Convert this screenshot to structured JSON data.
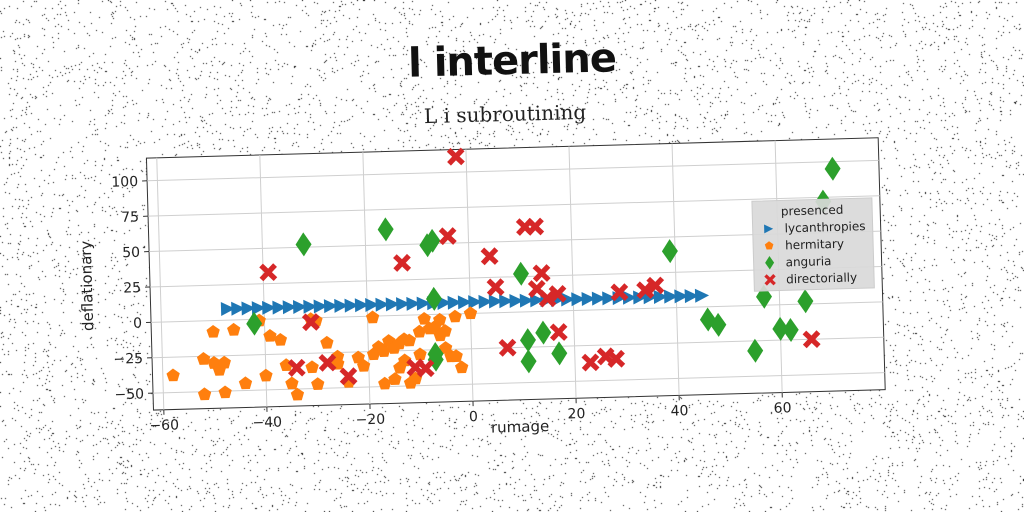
{
  "title": "l interline",
  "subtitle": "L i subroutining",
  "chart_data": {
    "type": "scatter",
    "xlabel": "rumage",
    "ylabel": "deflationary",
    "xlim": [
      -62,
      80
    ],
    "ylim": [
      -62,
      116
    ],
    "xticks": [
      -60,
      -40,
      -20,
      0,
      20,
      40,
      60
    ],
    "yticks": [
      -50,
      -25,
      0,
      25,
      50,
      75,
      100
    ],
    "grid": true,
    "legend": {
      "title": "presenced",
      "placement": "right"
    },
    "series": [
      {
        "name": "lycanthropies",
        "marker": "triangle-right",
        "color": "#1f77b4",
        "points": [
          [
            -47,
            8
          ],
          [
            -45,
            8
          ],
          [
            -43,
            8
          ],
          [
            -41,
            8
          ],
          [
            -39,
            8
          ],
          [
            -37,
            8
          ],
          [
            -35,
            8
          ],
          [
            -33,
            8
          ],
          [
            -31,
            8
          ],
          [
            -29,
            8
          ],
          [
            -27,
            8
          ],
          [
            -25,
            8
          ],
          [
            -23,
            8
          ],
          [
            -21,
            8
          ],
          [
            -19,
            8
          ],
          [
            -17,
            8
          ],
          [
            -15,
            8
          ],
          [
            -13,
            8
          ],
          [
            -11,
            8
          ],
          [
            -9,
            8
          ],
          [
            -7,
            8
          ],
          [
            -5,
            8
          ],
          [
            -3,
            8
          ],
          [
            -1,
            8
          ],
          [
            1,
            8
          ],
          [
            3,
            8
          ],
          [
            5,
            8
          ],
          [
            7,
            8
          ],
          [
            9,
            8
          ],
          [
            11,
            8
          ],
          [
            13,
            8
          ],
          [
            15,
            8
          ],
          [
            17,
            8
          ],
          [
            19,
            8
          ],
          [
            21,
            8
          ],
          [
            23,
            8
          ],
          [
            25,
            8
          ],
          [
            27,
            8
          ],
          [
            29,
            8
          ],
          [
            31,
            8
          ],
          [
            33,
            8
          ],
          [
            35,
            8
          ],
          [
            37,
            8
          ],
          [
            39,
            8
          ],
          [
            41,
            8
          ],
          [
            43,
            8
          ],
          [
            45,
            8
          ]
        ]
      },
      {
        "name": "hermitary",
        "marker": "pentagon",
        "color": "#ff7f0e",
        "points": [
          [
            -58,
            -38
          ],
          [
            -52,
            -27
          ],
          [
            -50,
            -30
          ],
          [
            -49,
            -35
          ],
          [
            -48,
            -30
          ],
          [
            -52,
            -52
          ],
          [
            -48,
            -51
          ],
          [
            -44,
            -45
          ],
          [
            -50,
            -8
          ],
          [
            -46,
            -7
          ],
          [
            -41,
            -1
          ],
          [
            -39,
            -12
          ],
          [
            -37,
            -15
          ],
          [
            -36,
            -33
          ],
          [
            -35,
            -46
          ],
          [
            -34,
            -54
          ],
          [
            -31,
            -1
          ],
          [
            -30,
            -2
          ],
          [
            -31,
            -35
          ],
          [
            -30,
            -47
          ],
          [
            -28,
            -18
          ],
          [
            -26,
            -28
          ],
          [
            -22,
            -29
          ],
          [
            -24,
            -46
          ],
          [
            -21,
            -35
          ],
          [
            -19,
            -27
          ],
          [
            -18,
            -22
          ],
          [
            -17,
            -25
          ],
          [
            -16,
            -18
          ],
          [
            -17,
            -48
          ],
          [
            -15,
            -23
          ],
          [
            -14,
            -37
          ],
          [
            -13,
            -32
          ],
          [
            -12,
            -48
          ],
          [
            -13,
            -17
          ],
          [
            -11,
            -45
          ],
          [
            -10,
            -12
          ],
          [
            -8,
            -10
          ],
          [
            -7,
            -9
          ],
          [
            -6,
            -15
          ],
          [
            -5,
            -12
          ],
          [
            -5,
            -24
          ],
          [
            -4,
            -30
          ],
          [
            -3,
            -30
          ],
          [
            -2,
            -38
          ],
          [
            -9,
            -3
          ],
          [
            -6,
            -4
          ],
          [
            -3,
            -2
          ],
          [
            0,
            0
          ],
          [
            -19,
            -1
          ],
          [
            -14,
            -20
          ],
          [
            -12,
            -18
          ],
          [
            -15,
            -45
          ],
          [
            -10,
            -28
          ],
          [
            -26,
            -33
          ],
          [
            -40,
            -40
          ]
        ]
      },
      {
        "name": "anguria",
        "marker": "diamond",
        "color": "#2ca02c",
        "points": [
          [
            -42,
            -3
          ],
          [
            -32,
            52
          ],
          [
            -16,
            61
          ],
          [
            -8,
            49
          ],
          [
            -7,
            52
          ],
          [
            -7,
            11
          ],
          [
            -7,
            -32
          ],
          [
            -7,
            -28
          ],
          [
            10,
            27
          ],
          [
            11,
            -20
          ],
          [
            11,
            -35
          ],
          [
            14,
            -15
          ],
          [
            17,
            -30
          ],
          [
            39,
            40
          ],
          [
            46,
            -9
          ],
          [
            48,
            -13
          ],
          [
            55,
            -32
          ],
          [
            57,
            6
          ],
          [
            60,
            -17
          ],
          [
            62,
            -18
          ],
          [
            65,
            2
          ],
          [
            69,
            72
          ],
          [
            71,
            95
          ]
        ]
      },
      {
        "name": "directorially",
        "marker": "x-filled",
        "color": "#d62728",
        "points": [
          [
            -39,
            33
          ],
          [
            -34,
            -35
          ],
          [
            -31,
            -3
          ],
          [
            -28,
            -32
          ],
          [
            -24,
            -42
          ],
          [
            -13,
            37
          ],
          [
            -11,
            -37
          ],
          [
            -9,
            -38
          ],
          [
            -4,
            55
          ],
          [
            -2,
            111
          ],
          [
            4,
            40
          ],
          [
            5,
            18
          ],
          [
            7,
            -25
          ],
          [
            11,
            60
          ],
          [
            13,
            60
          ],
          [
            13,
            16
          ],
          [
            14,
            27
          ],
          [
            15,
            9
          ],
          [
            17,
            12
          ],
          [
            17,
            -15
          ],
          [
            23,
            -37
          ],
          [
            26,
            -33
          ],
          [
            28,
            -35
          ],
          [
            29,
            12
          ],
          [
            34,
            13
          ],
          [
            36,
            16
          ],
          [
            66,
            -25
          ]
        ]
      }
    ]
  }
}
